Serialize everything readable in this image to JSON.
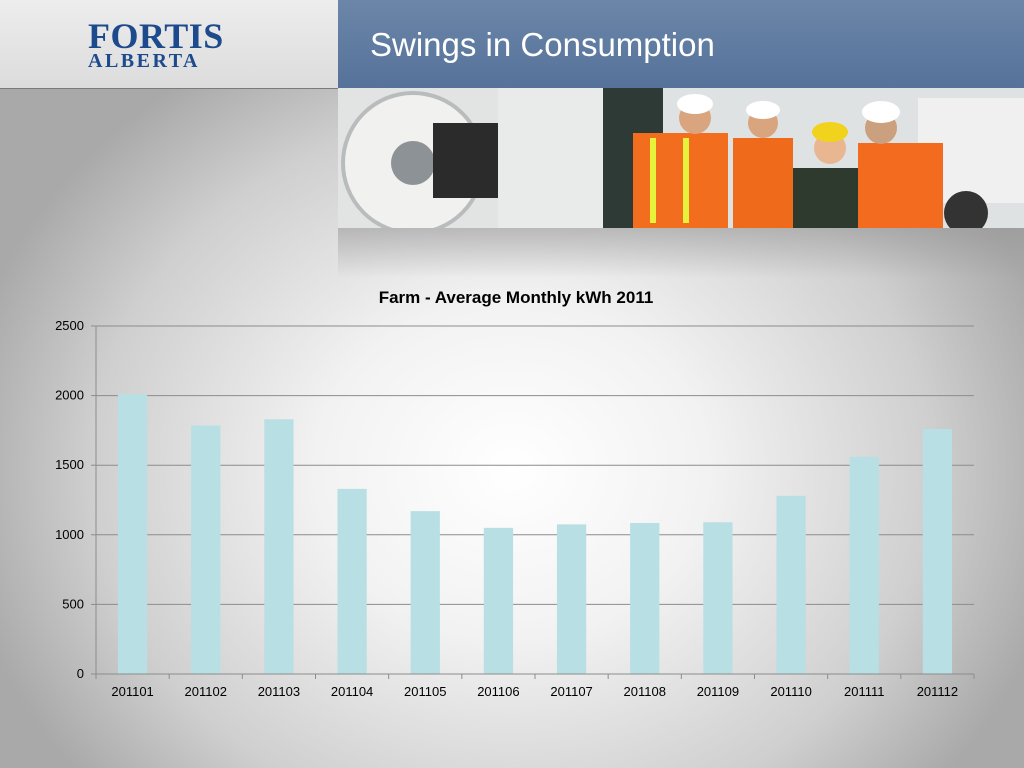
{
  "header": {
    "logo_line1": "FORTIS",
    "logo_line2": "ALBERTA",
    "title": "Swings in Consumption"
  },
  "colors": {
    "bar": "#b8dfe3",
    "title_bar": "#5f7ba0",
    "logo": "#1c4a8c"
  },
  "chart_data": {
    "type": "bar",
    "title": "Farm - Average Monthly  kWh 2011",
    "xlabel": "",
    "ylabel": "",
    "categories": [
      "201101",
      "201102",
      "201103",
      "201104",
      "201105",
      "201106",
      "201107",
      "201108",
      "201109",
      "201110",
      "201111",
      "201112"
    ],
    "values": [
      2010,
      1785,
      1830,
      1330,
      1170,
      1050,
      1075,
      1085,
      1090,
      1280,
      1560,
      1760
    ],
    "ylim": [
      0,
      2500
    ],
    "yticks": [
      0,
      500,
      1000,
      1500,
      2000,
      2500
    ],
    "grid": true,
    "legend": "none"
  }
}
